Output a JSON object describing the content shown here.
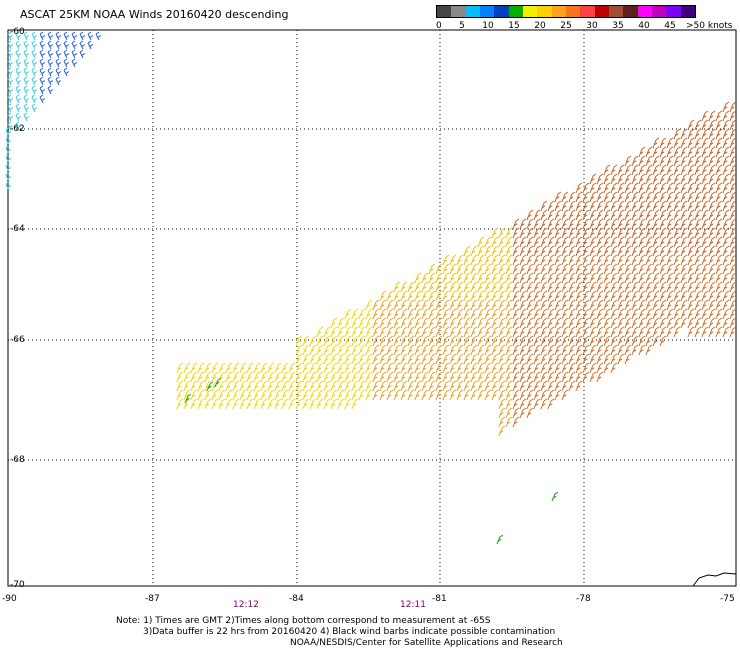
{
  "title": "ASCAT 25KM NOAA Winds 20160420 descending",
  "legend": {
    "colors": [
      "#444444",
      "#888888",
      "#00bfff",
      "#0080ff",
      "#0040c0",
      "#00b000",
      "#f0f000",
      "#ffd000",
      "#ffa020",
      "#ff7020",
      "#ff4040",
      "#c00000",
      "#a05030",
      "#602020",
      "#ff00ff",
      "#c000c0",
      "#8000ff",
      "#400080"
    ],
    "labels": [
      "0",
      "5",
      "10",
      "15",
      "20",
      "25",
      "30",
      "35",
      "40",
      "45",
      ">50 knots"
    ]
  },
  "map": {
    "lat_labels": [
      "-60",
      "-62",
      "-64",
      "-66",
      "-68",
      "-70"
    ],
    "lon_labels": [
      "-90",
      "-87",
      "-84",
      "-81",
      "-78",
      "-75"
    ],
    "time_labels": [
      "12:12",
      "12:11"
    ]
  },
  "notes": {
    "line1": "Note: 1) Times are GMT 2)Times along bottom correspond to measurement at -65S",
    "line2": "3)Data buffer is 22 hrs from 20160420 4) Black wind barbs indicate possible contamination",
    "line3": "NOAA/NESDIS/Center for Satellite Applications and Research"
  }
}
